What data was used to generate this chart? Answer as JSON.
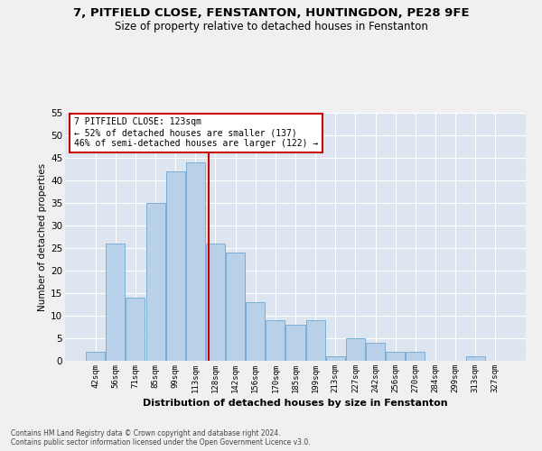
{
  "title1": "7, PITFIELD CLOSE, FENSTANTON, HUNTINGDON, PE28 9FE",
  "title2": "Size of property relative to detached houses in Fenstanton",
  "xlabel": "Distribution of detached houses by size in Fenstanton",
  "ylabel": "Number of detached properties",
  "categories": [
    "42sqm",
    "56sqm",
    "71sqm",
    "85sqm",
    "99sqm",
    "113sqm",
    "128sqm",
    "142sqm",
    "156sqm",
    "170sqm",
    "185sqm",
    "199sqm",
    "213sqm",
    "227sqm",
    "242sqm",
    "256sqm",
    "270sqm",
    "284sqm",
    "299sqm",
    "313sqm",
    "327sqm"
  ],
  "values": [
    2,
    26,
    14,
    35,
    42,
    44,
    26,
    24,
    13,
    9,
    8,
    9,
    1,
    5,
    4,
    2,
    2,
    0,
    0,
    1,
    0
  ],
  "bar_color": "#b8d0e8",
  "bar_edge_color": "#7bafd4",
  "marker_label": "7 PITFIELD CLOSE: 123sqm",
  "annotation_line1": "← 52% of detached houses are smaller (137)",
  "annotation_line2": "46% of semi-detached houses are larger (122) →",
  "vline_color": "#cc0000",
  "annotation_box_color": "#cc0000",
  "background_color": "#dde6f0",
  "grid_color": "#ffffff",
  "fig_background": "#f0f0f0",
  "ylim": [
    0,
    55
  ],
  "yticks": [
    0,
    5,
    10,
    15,
    20,
    25,
    30,
    35,
    40,
    45,
    50,
    55
  ],
  "footer1": "Contains HM Land Registry data © Crown copyright and database right 2024.",
  "footer2": "Contains public sector information licensed under the Open Government Licence v3.0."
}
